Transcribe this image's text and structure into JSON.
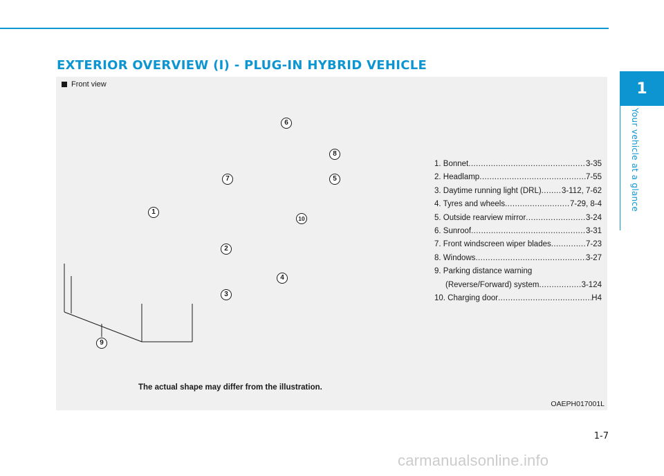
{
  "header": {
    "title": "EXTERIOR OVERVIEW (I) - PLUG-IN HYBRID VEHICLE",
    "accent_color": "#0d95d2"
  },
  "chapter_tab": {
    "number": "1",
    "label": "Your vehicle at a glance"
  },
  "figure": {
    "view_label": "Front view",
    "callouts": [
      "1",
      "2",
      "3",
      "4",
      "5",
      "6",
      "7",
      "8",
      "9",
      "10"
    ],
    "disclaimer": "The actual shape may differ from the illustration.",
    "image_code": "OAEPH017001L"
  },
  "parts": [
    {
      "name": "1. Bonnet",
      "page": "3-35"
    },
    {
      "name": "2. Headlamp",
      "page": "7-55"
    },
    {
      "name": "3. Daytime running light (DRL)",
      "page": "3-112, 7-62"
    },
    {
      "name": "4. Tyres and wheels",
      "page": "7-29, 8-4"
    },
    {
      "name": "5. Outside rearview mirror",
      "page": "3-24"
    },
    {
      "name": "6. Sunroof",
      "page": "3-31"
    },
    {
      "name": "7. Front windscreen wiper blades",
      "page": "7-23"
    },
    {
      "name": "8. Windows",
      "page": "3-27"
    },
    {
      "name": "9. Parking distance warning",
      "sub": "(Reverse/Forward) system",
      "page": "3-124"
    },
    {
      "name": "10. Charging door",
      "page": "H4"
    }
  ],
  "footer": {
    "page_number": "1-7",
    "watermark": "carmanualsonline.info"
  }
}
